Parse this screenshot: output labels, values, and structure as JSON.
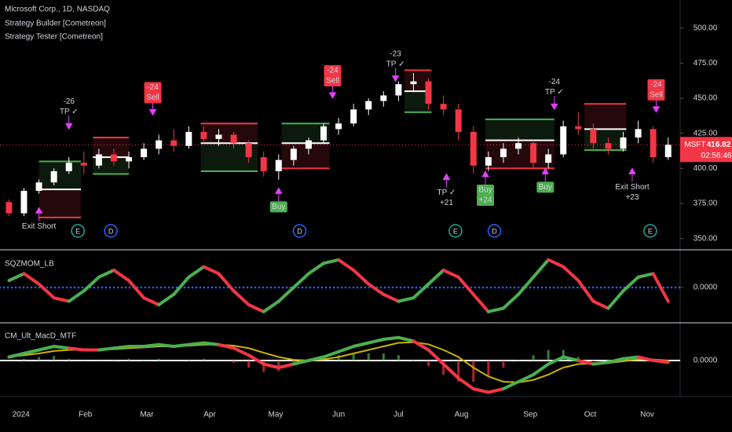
{
  "chart_data": [
    {
      "type": "candlestick",
      "title": "Microsoft Corp., 1D, NASDAQ",
      "indicators": [
        "Strategy Builder [Cometreon]",
        "Strategy Tester [Cometreon]"
      ],
      "symbol": "MSFT",
      "last_price": 416.82,
      "countdown": "02:56:46",
      "up_color": "#ffffff",
      "down_color": "#f23645",
      "xlim": [
        -3,
        224
      ],
      "xticks": [
        {
          "value": 4,
          "label": "2024"
        },
        {
          "value": 25.5,
          "label": "Feb"
        },
        {
          "value": 46,
          "label": "Mar"
        },
        {
          "value": 67,
          "label": "Apr"
        },
        {
          "value": 89,
          "label": "May"
        },
        {
          "value": 110,
          "label": "Jun"
        },
        {
          "value": 130,
          "label": "Jul"
        },
        {
          "value": 151,
          "label": "Aug"
        },
        {
          "value": 174,
          "label": "Sep"
        },
        {
          "value": 194,
          "label": "Oct"
        },
        {
          "value": 213,
          "label": "Nov"
        }
      ],
      "ylim": [
        342,
        520
      ],
      "yticks": [
        {
          "value": 350,
          "label": "350.00"
        },
        {
          "value": 375,
          "label": "375.00"
        },
        {
          "value": 400,
          "label": "400.00"
        },
        {
          "value": 425,
          "label": "425.00"
        },
        {
          "value": 450,
          "label": "450.00"
        },
        {
          "value": 475,
          "label": "475.00"
        },
        {
          "value": 500,
          "label": "500.00"
        }
      ],
      "x": [
        0,
        5,
        10,
        15,
        20,
        25,
        30,
        35,
        40,
        45,
        50,
        55,
        60,
        65,
        70,
        75,
        80,
        85,
        90,
        95,
        100,
        105,
        110,
        115,
        120,
        125,
        130,
        135,
        140,
        145,
        150,
        155,
        160,
        165,
        170,
        175,
        180,
        185,
        190,
        195,
        200,
        205,
        210,
        215,
        220
      ],
      "open": [
        376,
        368,
        384,
        390,
        398,
        404,
        402,
        410,
        405,
        408,
        414,
        420,
        416,
        426,
        421,
        424,
        418,
        408,
        398,
        406,
        414,
        420,
        428,
        432,
        442,
        448,
        452,
        460,
        462,
        446,
        442,
        426,
        402,
        408,
        414,
        418,
        404,
        410,
        430,
        428,
        418,
        414,
        422,
        428,
        408
      ],
      "high": [
        378,
        386,
        392,
        400,
        408,
        412,
        414,
        414,
        412,
        418,
        424,
        428,
        430,
        430,
        428,
        426,
        420,
        412,
        410,
        416,
        422,
        432,
        436,
        446,
        450,
        455,
        462,
        468,
        464,
        452,
        446,
        430,
        412,
        418,
        422,
        420,
        414,
        434,
        440,
        432,
        422,
        426,
        434,
        430,
        422
      ],
      "low": [
        366,
        366,
        382,
        388,
        396,
        396,
        400,
        402,
        400,
        406,
        410,
        412,
        414,
        418,
        416,
        414,
        404,
        394,
        392,
        402,
        410,
        418,
        424,
        430,
        438,
        444,
        448,
        455,
        442,
        438,
        420,
        396,
        398,
        404,
        410,
        400,
        400,
        408,
        424,
        414,
        410,
        412,
        418,
        404,
        406
      ],
      "close": [
        368,
        384,
        390,
        398,
        404,
        402,
        410,
        405,
        408,
        414,
        420,
        416,
        426,
        421,
        424,
        418,
        408,
        398,
        406,
        414,
        420,
        430,
        432,
        442,
        448,
        452,
        460,
        462,
        446,
        442,
        426,
        402,
        408,
        414,
        418,
        404,
        410,
        430,
        428,
        418,
        414,
        422,
        428,
        408,
        416.82
      ],
      "zones": [
        {
          "x0": 10,
          "x1": 24,
          "side": "long",
          "upper": 405,
          "entry": 385,
          "lower": 365
        },
        {
          "x0": 28,
          "x1": 40,
          "side": "short",
          "upper": 422,
          "entry": 408,
          "lower": 396
        },
        {
          "x0": 64,
          "x1": 83,
          "side": "short",
          "upper": 432,
          "entry": 418,
          "lower": 398
        },
        {
          "x0": 91,
          "x1": 107,
          "side": "long",
          "upper": 432,
          "entry": 418,
          "lower": 400
        },
        {
          "x0": 132,
          "x1": 141,
          "side": "short",
          "upper": 470,
          "entry": 455,
          "lower": 440
        },
        {
          "x0": 159,
          "x1": 182,
          "side": "long",
          "upper": 435,
          "entry": 420,
          "lower": 400
        },
        {
          "x0": 192,
          "x1": 206,
          "side": "short",
          "upper": 446,
          "entry": 428,
          "lower": 413
        }
      ],
      "annotations": [
        {
          "x": 20,
          "price": 428,
          "kind": "tp",
          "text": [
            "-26",
            "TP ✓"
          ]
        },
        {
          "x": 48,
          "price": 438,
          "kind": "sell",
          "text": [
            "-24",
            "Sell"
          ]
        },
        {
          "x": 108,
          "price": 450,
          "kind": "sell",
          "text": [
            "-24",
            "Sell"
          ]
        },
        {
          "x": 129,
          "price": 462,
          "kind": "tp",
          "text": [
            "-23",
            "TP ✓"
          ]
        },
        {
          "x": 182,
          "price": 442,
          "kind": "tp",
          "text": [
            "-24",
            "TP ✓"
          ]
        },
        {
          "x": 216,
          "price": 440,
          "kind": "sell",
          "text": [
            "-24",
            "Sell"
          ]
        },
        {
          "x": 10,
          "price": 372,
          "kind": "exit",
          "text": [
            "Exit Short"
          ]
        },
        {
          "x": 90,
          "price": 386,
          "kind": "buy",
          "text": [
            "Buy"
          ]
        },
        {
          "x": 146,
          "price": 396,
          "kind": "tp",
          "text": [
            "TP ✓",
            "+21"
          ]
        },
        {
          "x": 159,
          "price": 398,
          "kind": "buy",
          "text": [
            "Buy",
            "+24"
          ]
        },
        {
          "x": 179,
          "price": 400,
          "kind": "buy",
          "text": [
            "Buy"
          ]
        },
        {
          "x": 208,
          "price": 400,
          "kind": "exit",
          "text": [
            "Exit Short",
            "+23"
          ]
        }
      ],
      "events": [
        {
          "x": 23,
          "text": "E"
        },
        {
          "x": 34,
          "text": "D"
        },
        {
          "x": 97,
          "text": "D"
        },
        {
          "x": 149,
          "text": "E"
        },
        {
          "x": 162,
          "text": "D"
        },
        {
          "x": 214,
          "text": "E"
        }
      ]
    },
    {
      "type": "momentum",
      "title": "SQZMOM_LB",
      "up_color": "#4caf50",
      "down_color": "#f23645",
      "ylim": [
        -1,
        1
      ],
      "yticks": [
        {
          "value": 0,
          "label": "0.0000"
        }
      ],
      "values": [
        0.2,
        0.4,
        0.1,
        -0.3,
        -0.4,
        -0.1,
        0.3,
        0.5,
        0.2,
        -0.3,
        -0.5,
        -0.2,
        0.3,
        0.6,
        0.4,
        -0.1,
        -0.5,
        -0.7,
        -0.4,
        0.0,
        0.4,
        0.7,
        0.8,
        0.5,
        0.1,
        -0.2,
        -0.4,
        -0.3,
        0.1,
        0.5,
        0.3,
        -0.2,
        -0.7,
        -0.6,
        -0.2,
        0.3,
        0.8,
        0.6,
        0.2,
        -0.4,
        -0.6,
        -0.1,
        0.3,
        0.4,
        -0.4
      ]
    },
    {
      "type": "macd",
      "title": "CM_Ult_MacD_MTF",
      "up_color": "#4caf50",
      "down_color": "#f23645",
      "signal_color": "#c8b400",
      "ylim": [
        -1,
        1
      ],
      "yticks": [
        {
          "value": 0,
          "label": "0.0000"
        }
      ],
      "macd": [
        0.1,
        0.2,
        0.3,
        0.4,
        0.35,
        0.3,
        0.3,
        0.35,
        0.4,
        0.4,
        0.45,
        0.4,
        0.45,
        0.5,
        0.45,
        0.35,
        0.15,
        -0.1,
        -0.2,
        -0.1,
        0.0,
        0.1,
        0.25,
        0.4,
        0.5,
        0.6,
        0.65,
        0.55,
        0.3,
        -0.1,
        -0.5,
        -0.8,
        -0.9,
        -0.8,
        -0.6,
        -0.4,
        -0.1,
        0.1,
        0.0,
        -0.1,
        -0.05,
        0.05,
        0.1,
        0.0,
        -0.05
      ],
      "signal": [
        0.1,
        0.15,
        0.2,
        0.27,
        0.3,
        0.31,
        0.31,
        0.32,
        0.35,
        0.37,
        0.4,
        0.4,
        0.42,
        0.45,
        0.45,
        0.42,
        0.35,
        0.22,
        0.1,
        0.02,
        0.0,
        0.03,
        0.1,
        0.2,
        0.3,
        0.4,
        0.5,
        0.52,
        0.46,
        0.3,
        0.1,
        -0.2,
        -0.45,
        -0.6,
        -0.62,
        -0.55,
        -0.4,
        -0.2,
        -0.1,
        -0.08,
        -0.07,
        -0.02,
        0.03,
        0.03,
        0.0
      ],
      "histogram": [
        0,
        0.05,
        0.1,
        0.13,
        0.05,
        -0.01,
        -0.01,
        0.03,
        0.05,
        0.03,
        0.05,
        0,
        0.03,
        0.05,
        0,
        -0.07,
        -0.2,
        -0.32,
        -0.3,
        -0.12,
        0,
        0.07,
        0.15,
        0.2,
        0.2,
        0.2,
        0.15,
        0.03,
        -0.16,
        -0.4,
        -0.6,
        -0.6,
        -0.45,
        -0.2,
        0.02,
        0.15,
        0.3,
        0.3,
        0.1,
        -0.02,
        0.02,
        0.07,
        0.07,
        -0.03,
        -0.05
      ]
    }
  ]
}
